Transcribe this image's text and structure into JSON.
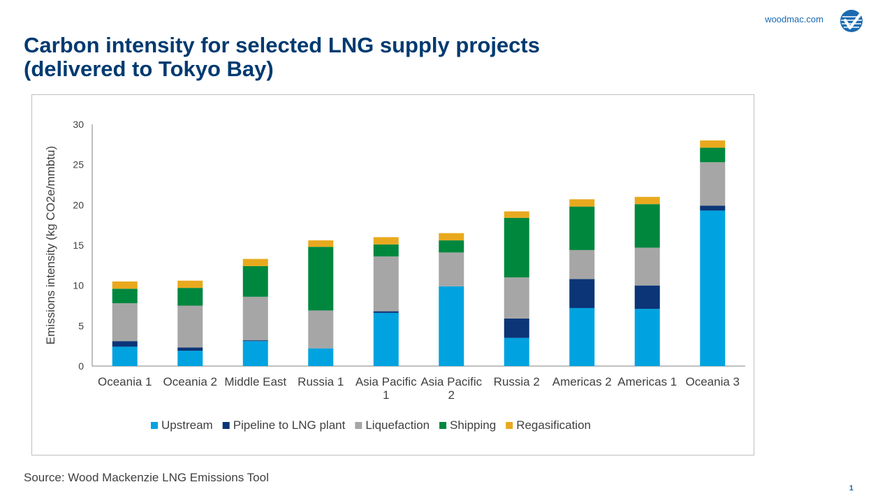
{
  "header": {
    "brand_url": "woodmac.com",
    "title_line1": "Carbon intensity for selected LNG supply projects",
    "title_line2": "(delivered to Tokyo Bay)"
  },
  "footer": {
    "source": "Source: Wood Mackenzie LNG Emissions Tool",
    "page_number": "1"
  },
  "colors": {
    "title": "#003a70",
    "upstream": "#00a3e0",
    "pipeline": "#0b3577",
    "liquefaction": "#a6a6a6",
    "shipping": "#00873e",
    "regasification": "#e9a91e",
    "brand": "#1a6ab2"
  },
  "chart_data": {
    "type": "bar",
    "stacked": true,
    "ylabel": "Emissions intensity (kg CO2e/mmbtu)",
    "ylim": [
      0,
      30
    ],
    "yticks": [
      0,
      5,
      10,
      15,
      20,
      25,
      30
    ],
    "grid": false,
    "legend_position": "bottom",
    "categories": [
      [
        "Oceania 1"
      ],
      [
        "Oceania 2"
      ],
      [
        "Middle East"
      ],
      [
        "Russia 1"
      ],
      [
        "Asia Pacific",
        "1"
      ],
      [
        "Asia Pacific",
        "2"
      ],
      [
        "Russia 2"
      ],
      [
        "Americas 2"
      ],
      [
        "Americas 1"
      ],
      [
        "Oceania 3"
      ]
    ],
    "series": [
      {
        "name": "Upstream",
        "color": "#00a3e0",
        "values": [
          2.4,
          1.9,
          3.1,
          2.2,
          6.6,
          9.9,
          3.5,
          7.2,
          7.1,
          19.3
        ]
      },
      {
        "name": "Pipeline to LNG plant",
        "color": "#0b3577",
        "values": [
          0.7,
          0.4,
          0.1,
          0.0,
          0.2,
          0.0,
          2.4,
          3.6,
          2.9,
          0.6
        ]
      },
      {
        "name": "Liquefaction",
        "color": "#a6a6a6",
        "values": [
          4.7,
          5.2,
          5.4,
          4.7,
          6.8,
          4.2,
          5.1,
          3.6,
          4.7,
          5.4
        ]
      },
      {
        "name": "Shipping",
        "color": "#00873e",
        "values": [
          1.8,
          2.2,
          3.8,
          7.9,
          1.5,
          1.5,
          7.4,
          5.4,
          5.4,
          1.8
        ]
      },
      {
        "name": "Regasification",
        "color": "#e9a91e",
        "values": [
          0.9,
          0.9,
          0.9,
          0.8,
          0.9,
          0.9,
          0.8,
          0.9,
          0.9,
          0.9
        ]
      }
    ]
  }
}
